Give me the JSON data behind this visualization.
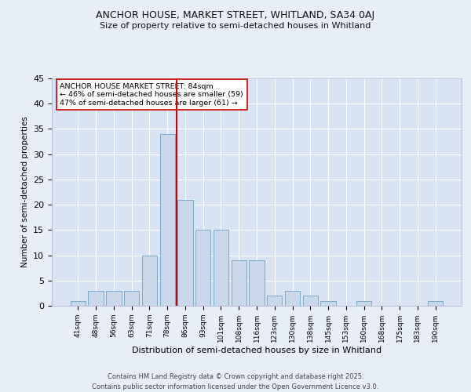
{
  "title1": "ANCHOR HOUSE, MARKET STREET, WHITLAND, SA34 0AJ",
  "title2": "Size of property relative to semi-detached houses in Whitland",
  "xlabel": "Distribution of semi-detached houses by size in Whitland",
  "ylabel": "Number of semi-detached properties",
  "categories": [
    "41sqm",
    "48sqm",
    "56sqm",
    "63sqm",
    "71sqm",
    "78sqm",
    "86sqm",
    "93sqm",
    "101sqm",
    "108sqm",
    "116sqm",
    "123sqm",
    "130sqm",
    "138sqm",
    "145sqm",
    "153sqm",
    "160sqm",
    "168sqm",
    "175sqm",
    "183sqm",
    "190sqm"
  ],
  "values": [
    1,
    3,
    3,
    3,
    10,
    34,
    21,
    15,
    15,
    9,
    9,
    2,
    3,
    2,
    1,
    0,
    1,
    0,
    0,
    0,
    1
  ],
  "bar_color": "#c8d8ea",
  "bar_edge_color": "#7aaac8",
  "highlight_index": 6,
  "highlight_line_color": "#cc0000",
  "annotation_text_line1": "ANCHOR HOUSE MARKET STREET: 84sqm",
  "annotation_text_line2": "← 46% of semi-detached houses are smaller (59)",
  "annotation_text_line3": "47% of semi-detached houses are larger (61) →",
  "ylim": [
    0,
    45
  ],
  "yticks": [
    0,
    5,
    10,
    15,
    20,
    25,
    30,
    35,
    40,
    45
  ],
  "background_color": "#e8eef8",
  "plot_bg_color": "#d8e4f4",
  "footer_line1": "Contains HM Land Registry data © Crown copyright and database right 2025.",
  "footer_line2": "Contains public sector information licensed under the Open Government Licence v3.0."
}
